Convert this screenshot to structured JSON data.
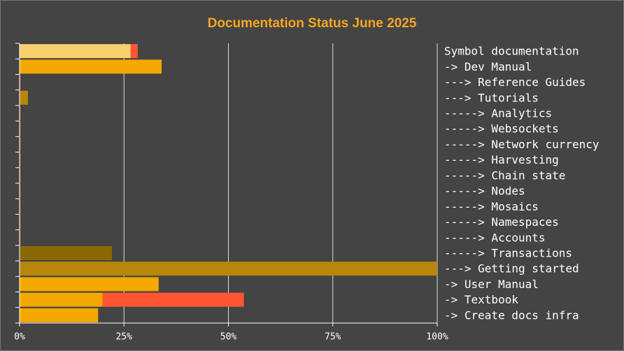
{
  "chart_data": {
    "type": "stacked-barh",
    "title": "Documentation Status June 2025",
    "categories": [
      "Symbol documentation",
      "-> Dev Manual",
      "---> Reference Guides",
      "---> Tutorials",
      "-----> Analytics",
      "-----> Websockets",
      "-----> Network currency",
      "-----> Harvesting",
      "-----> Chain state",
      "-----> Nodes",
      "-----> Mosaics",
      "-----> Namespaces",
      "-----> Accounts",
      "-----> Transactions",
      "---> Getting started",
      "-> User Manual",
      "-> Textbook",
      "-> Create docs infra"
    ],
    "series": [
      {
        "colors": [
          "#f9d06e",
          "#f5a800",
          "#b8860b",
          "#b8860b",
          "#8a6800",
          "#8a6800",
          "#8a6800",
          "#8a6800",
          "#8a6800",
          "#8a6800",
          "#8a6800",
          "#8a6800",
          "#8a6800",
          "#8a6800",
          "#b8860b",
          "#f5a800",
          "#f5a800",
          "#f5a800"
        ],
        "values": [
          26.6,
          34.0,
          0,
          2.0,
          0,
          0,
          0,
          0,
          0,
          0,
          0,
          0,
          0,
          22.1,
          100,
          33.3,
          19.9,
          18.8
        ]
      },
      {
        "color": "#ff5533",
        "values": [
          1.7,
          0,
          0.2,
          0,
          0.2,
          0.2,
          0.2,
          0.2,
          0.2,
          0.2,
          0.2,
          0.2,
          0.2,
          0,
          0,
          0,
          33.8,
          0
        ]
      }
    ],
    "xlim": [
      0,
      100
    ],
    "xticks": [
      {
        "value": 0,
        "label": "0%"
      },
      {
        "value": 25,
        "label": "25%"
      },
      {
        "value": 50,
        "label": "50%"
      },
      {
        "value": 75,
        "label": "75%"
      },
      {
        "value": 100,
        "label": "100%"
      }
    ],
    "grid": true
  }
}
